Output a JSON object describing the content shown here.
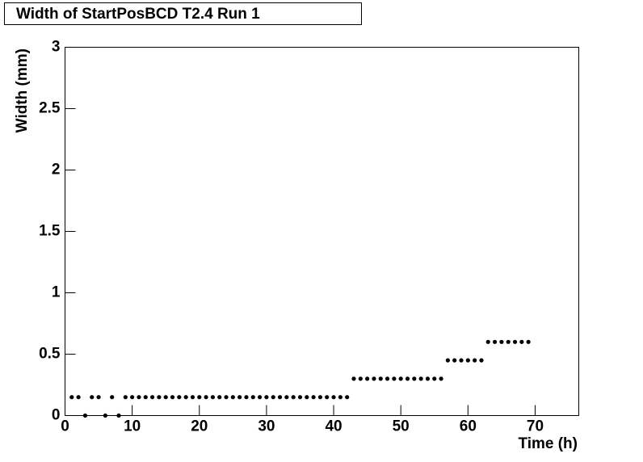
{
  "chart_data": {
    "type": "scatter",
    "title": "Width of StartPosBCD T2.4 Run 1",
    "x_label": "Time (h)",
    "y_label": "Width (mm)",
    "x": [
      1,
      2,
      3,
      4,
      5,
      6,
      7,
      8,
      9,
      10,
      11,
      12,
      13,
      14,
      15,
      16,
      17,
      18,
      19,
      20,
      21,
      22,
      23,
      24,
      25,
      26,
      27,
      28,
      29,
      30,
      31,
      32,
      33,
      34,
      35,
      36,
      37,
      38,
      39,
      40,
      41,
      42,
      43,
      44,
      45,
      46,
      47,
      48,
      49,
      50,
      51,
      52,
      53,
      54,
      55,
      56,
      57,
      58,
      59,
      60,
      61,
      62,
      63,
      64,
      65,
      66,
      67,
      68,
      69
    ],
    "values": [
      0.15,
      0.15,
      0,
      0.15,
      0.15,
      0,
      0.15,
      0,
      0.15,
      0.15,
      0.15,
      0.15,
      0.15,
      0.15,
      0.15,
      0.15,
      0.15,
      0.15,
      0.15,
      0.15,
      0.15,
      0.15,
      0.15,
      0.15,
      0.15,
      0.15,
      0.15,
      0.15,
      0.15,
      0.15,
      0.15,
      0.15,
      0.15,
      0.15,
      0.15,
      0.15,
      0.15,
      0.15,
      0.15,
      0.15,
      0.15,
      0.15,
      0.3,
      0.3,
      0.3,
      0.3,
      0.3,
      0.3,
      0.3,
      0.3,
      0.3,
      0.3,
      0.3,
      0.3,
      0.3,
      0.3,
      0.45,
      0.45,
      0.45,
      0.45,
      0.45,
      0.45,
      0.6,
      0.6,
      0.6,
      0.6,
      0.6,
      0.6,
      0.6
    ],
    "color": "#000000",
    "xlim": [
      0,
      76.5
    ],
    "xticks": [
      0,
      10,
      20,
      30,
      40,
      50,
      60,
      70
    ],
    "ylim": [
      0,
      3
    ],
    "yticks": [
      0,
      0.5,
      1,
      1.5,
      2,
      2.5,
      3
    ],
    "grid": false
  }
}
